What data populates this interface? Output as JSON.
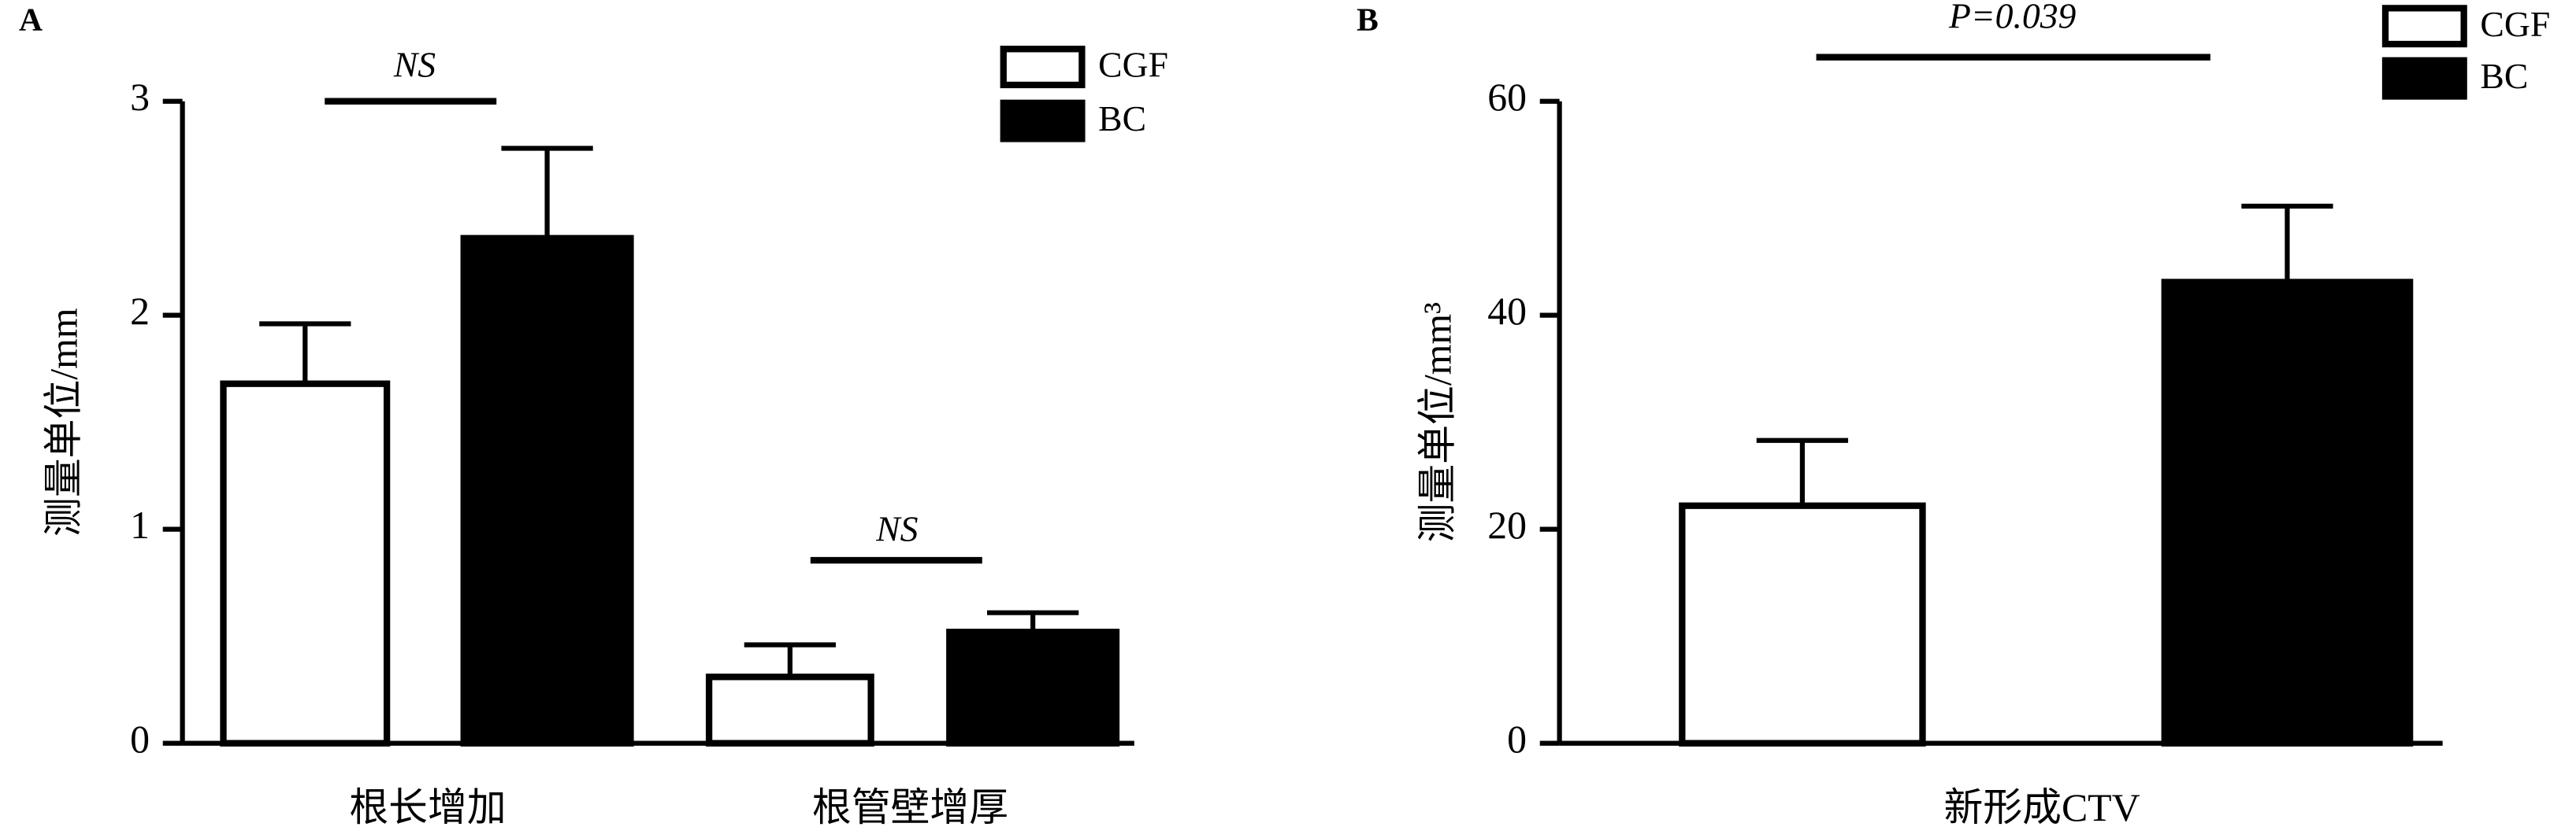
{
  "chart_data": [
    {
      "type": "bar",
      "panel": "A",
      "ylabel": "测量单位/mm",
      "categories": [
        "根长增加",
        "根管壁增厚"
      ],
      "series": [
        {
          "name": "CGF",
          "color": "#ffffff",
          "values": [
            1.68,
            0.31
          ],
          "errors": [
            0.28,
            0.15
          ]
        },
        {
          "name": "BC",
          "color": "#000000",
          "values": [
            2.36,
            0.52
          ],
          "errors": [
            0.42,
            0.09
          ]
        }
      ],
      "ylim": [
        0,
        3
      ],
      "yticks": [
        0,
        1,
        2,
        3
      ],
      "annotations": [
        "NS",
        "NS"
      ]
    },
    {
      "type": "bar",
      "panel": "B",
      "ylabel": "测量单位/mm³",
      "categories": [
        "新形成CTV"
      ],
      "series": [
        {
          "name": "CGF",
          "color": "#ffffff",
          "values": [
            22.2
          ],
          "errors": [
            6.1
          ]
        },
        {
          "name": "BC",
          "color": "#000000",
          "values": [
            43.1
          ],
          "errors": [
            7.1
          ]
        }
      ],
      "ylim": [
        0,
        60
      ],
      "yticks": [
        0,
        20,
        40,
        60
      ],
      "annotations": [
        "P=0.039"
      ]
    }
  ]
}
